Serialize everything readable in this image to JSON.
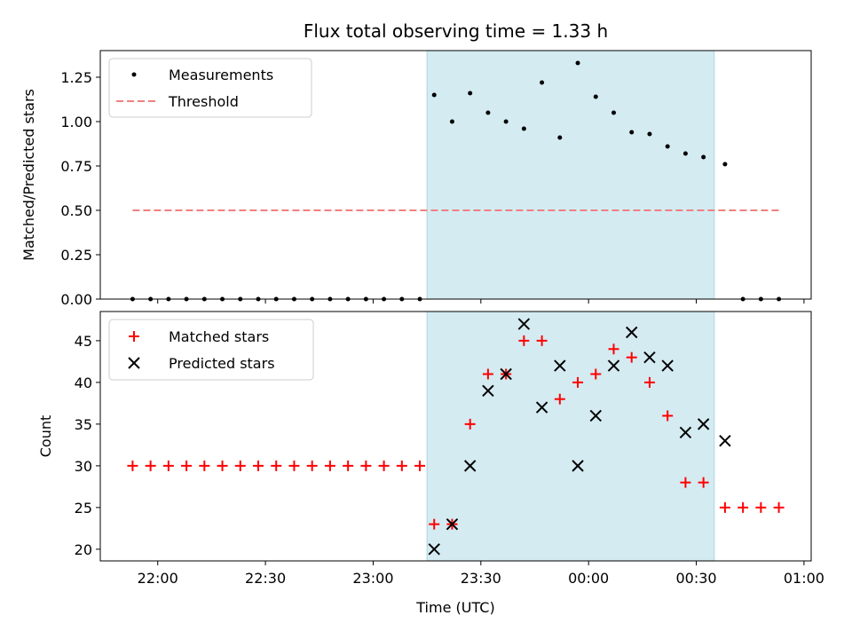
{
  "chart_data": [
    {
      "type": "scatter",
      "title": "Flux total observing time = 1.33 h",
      "xlabel": "",
      "ylabel": "Matched/Predicted stars",
      "ylim": [
        0,
        1.4
      ],
      "yticks": [
        "0.00",
        "0.25",
        "0.50",
        "0.75",
        "1.00",
        "1.25"
      ],
      "shaded_region": {
        "x_start": "23:15",
        "x_end": "00:35",
        "color": "#d4ebf2"
      },
      "legend": {
        "placement": "top-left",
        "entries": [
          "Measurements",
          "Threshold"
        ]
      },
      "threshold": {
        "name": "Threshold",
        "value": 0.5,
        "x_start": "21:53",
        "x_end": "00:53",
        "color": "#f08080"
      },
      "series": [
        {
          "name": "Measurements",
          "x": [
            "21:53",
            "21:58",
            "22:03",
            "22:08",
            "22:13",
            "22:18",
            "22:23",
            "22:28",
            "22:33",
            "22:38",
            "22:43",
            "22:48",
            "22:53",
            "22:58",
            "23:03",
            "23:08",
            "23:13",
            "23:17",
            "23:22",
            "23:27",
            "23:32",
            "23:37",
            "23:42",
            "23:47",
            "23:52",
            "23:57",
            "00:02",
            "00:07",
            "00:12",
            "00:17",
            "00:22",
            "00:27",
            "00:32",
            "00:38",
            "00:43",
            "00:48",
            "00:53"
          ],
          "y": [
            0,
            0,
            0,
            0,
            0,
            0,
            0,
            0,
            0,
            0,
            0,
            0,
            0,
            0,
            0,
            0,
            0,
            1.15,
            1.0,
            1.16,
            1.05,
            1.0,
            0.96,
            1.22,
            0.91,
            1.33,
            1.14,
            1.05,
            0.94,
            0.93,
            0.86,
            0.82,
            0.8,
            0.76,
            0,
            0,
            0
          ]
        }
      ]
    },
    {
      "type": "scatter",
      "xlabel": "Time (UTC)",
      "ylabel": "Count",
      "ylim": [
        18.6,
        48.5
      ],
      "yticks": [
        "20",
        "25",
        "30",
        "35",
        "40",
        "45"
      ],
      "xticks": [
        "22:00",
        "22:30",
        "23:00",
        "23:30",
        "00:00",
        "00:30",
        "01:00"
      ],
      "xlim": [
        "21:44",
        "01:02"
      ],
      "shaded_region": {
        "x_start": "23:15",
        "x_end": "00:35",
        "color": "#d4ebf2"
      },
      "legend": {
        "placement": "top-left",
        "entries": [
          "Matched stars",
          "Predicted stars"
        ]
      },
      "series": [
        {
          "name": "Matched stars",
          "marker": "plus",
          "color": "#ff0000",
          "x": [
            "21:53",
            "21:58",
            "22:03",
            "22:08",
            "22:13",
            "22:18",
            "22:23",
            "22:28",
            "22:33",
            "22:38",
            "22:43",
            "22:48",
            "22:53",
            "22:58",
            "23:03",
            "23:08",
            "23:13",
            "23:17",
            "23:22",
            "23:27",
            "23:32",
            "23:37",
            "23:42",
            "23:47",
            "23:52",
            "23:57",
            "00:02",
            "00:07",
            "00:12",
            "00:17",
            "00:22",
            "00:27",
            "00:32",
            "00:38",
            "00:43",
            "00:48",
            "00:53"
          ],
          "y": [
            30,
            30,
            30,
            30,
            30,
            30,
            30,
            30,
            30,
            30,
            30,
            30,
            30,
            30,
            30,
            30,
            30,
            23,
            23,
            35,
            41,
            41,
            45,
            45,
            38,
            40,
            41,
            44,
            43,
            40,
            36,
            28,
            28,
            25,
            25,
            25,
            25
          ]
        },
        {
          "name": "Predicted stars",
          "marker": "x",
          "color": "#000000",
          "x": [
            "23:17",
            "23:22",
            "23:27",
            "23:32",
            "23:37",
            "23:42",
            "23:47",
            "23:52",
            "23:57",
            "00:02",
            "00:07",
            "00:12",
            "00:17",
            "00:22",
            "00:27",
            "00:32",
            "00:38"
          ],
          "y": [
            20,
            23,
            30,
            39,
            41,
            47,
            37,
            42,
            30,
            36,
            42,
            46,
            43,
            42,
            34,
            35,
            33
          ]
        }
      ]
    }
  ]
}
